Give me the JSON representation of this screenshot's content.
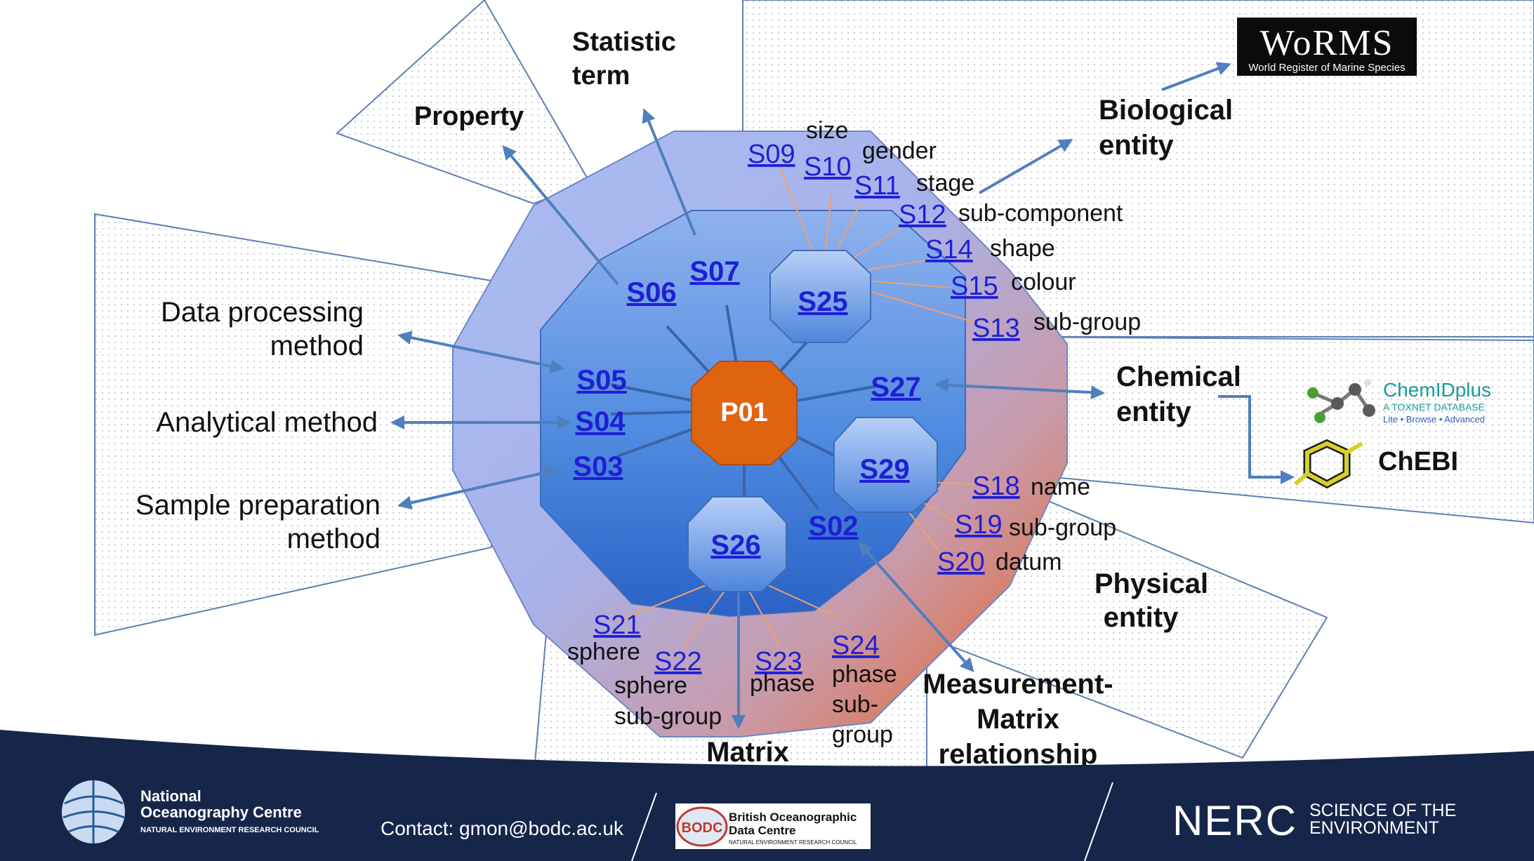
{
  "center": {
    "code": "P01"
  },
  "categories": {
    "property": "Property",
    "statistic_line1": "Statistic",
    "statistic_line2": "term",
    "biological_line1": "Biological",
    "biological_line2": "entity",
    "chemical_line1": "Chemical",
    "chemical_line2": "entity",
    "physical_line1": "Physical",
    "physical_line2": "entity",
    "measurement_line1": "Measurement-",
    "measurement_line2": "Matrix",
    "measurement_line3": "relationship",
    "matrix": "Matrix",
    "data_processing_line1": "Data processing",
    "data_processing_line2": "method",
    "analytical": "Analytical method",
    "sample_prep_line1": "Sample preparation",
    "sample_prep_line2": "method"
  },
  "inner_codes": {
    "s06": "S06",
    "s07": "S07",
    "s05": "S05",
    "s04": "S04",
    "s03": "S03",
    "s27": "S27",
    "s02": "S02",
    "s25": "S25",
    "s29": "S29",
    "s26": "S26"
  },
  "biological_terms": [
    {
      "code": "S09",
      "label": "size"
    },
    {
      "code": "S10",
      "label": "gender"
    },
    {
      "code": "S11",
      "label": "stage"
    },
    {
      "code": "S12",
      "label": "sub-component"
    },
    {
      "code": "S14",
      "label": "shape"
    },
    {
      "code": "S15",
      "label": "colour"
    },
    {
      "code": "S13",
      "label": "sub-group"
    }
  ],
  "chemical_terms": [
    {
      "code": "S18",
      "label": "name"
    },
    {
      "code": "S19",
      "label": "sub-group"
    },
    {
      "code": "S20",
      "label": "datum"
    }
  ],
  "matrix_terms": {
    "s21": "S21",
    "s21_label": "sphere",
    "s22": "S22",
    "s22_label1": "sphere",
    "s22_label2": "sub-group",
    "s23": "S23",
    "s23_label": "phase",
    "s24": "S24",
    "s24_label1": "phase",
    "s24_label2": "sub-",
    "s24_label3": "group"
  },
  "logos": {
    "worms_title": "WoRMS",
    "worms_subtitle": "World Register of Marine Species",
    "chemid_title": "ChemIDplus",
    "chemid_subtitle": "A TOXNET DATABASE",
    "chemid_links": "Lite • Browse • Advanced",
    "chebi": "ChEBI"
  },
  "footer": {
    "noc_line1": "National",
    "noc_line2": "Oceanography Centre",
    "noc_line3": "NATURAL ENVIRONMENT RESEARCH COUNCIL",
    "contact": "Contact: gmon@bodc.ac.uk",
    "bodc_badge": "BODC",
    "bodc_line1": "British Oceanographic",
    "bodc_line2": "Data Centre",
    "bodc_line3": "NATURAL ENVIRONMENT RESEARCH COUNCIL",
    "nerc": "NERC",
    "nerc_tag1": "SCIENCE OF THE",
    "nerc_tag2": "ENVIRONMENT"
  },
  "colors": {
    "inner_blue": "#3f7fd6",
    "outer_blue": "#9db3ee",
    "outer_orange": "#e3622c",
    "center_orange": "#e06410",
    "arrow": "#4f7fbd",
    "footer": "#16264a",
    "code_link": "#1f1fd6"
  }
}
